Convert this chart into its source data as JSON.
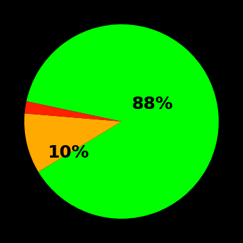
{
  "slices": [
    88,
    10,
    2
  ],
  "colors": [
    "#00ff00",
    "#ffaa00",
    "#ff2000"
  ],
  "labels": [
    "88%",
    "10%",
    ""
  ],
  "background_color": "#000000",
  "label_fontsize": 18,
  "label_color": "#000000",
  "startangle": 168,
  "figsize": [
    3.5,
    3.5
  ],
  "dpi": 100
}
